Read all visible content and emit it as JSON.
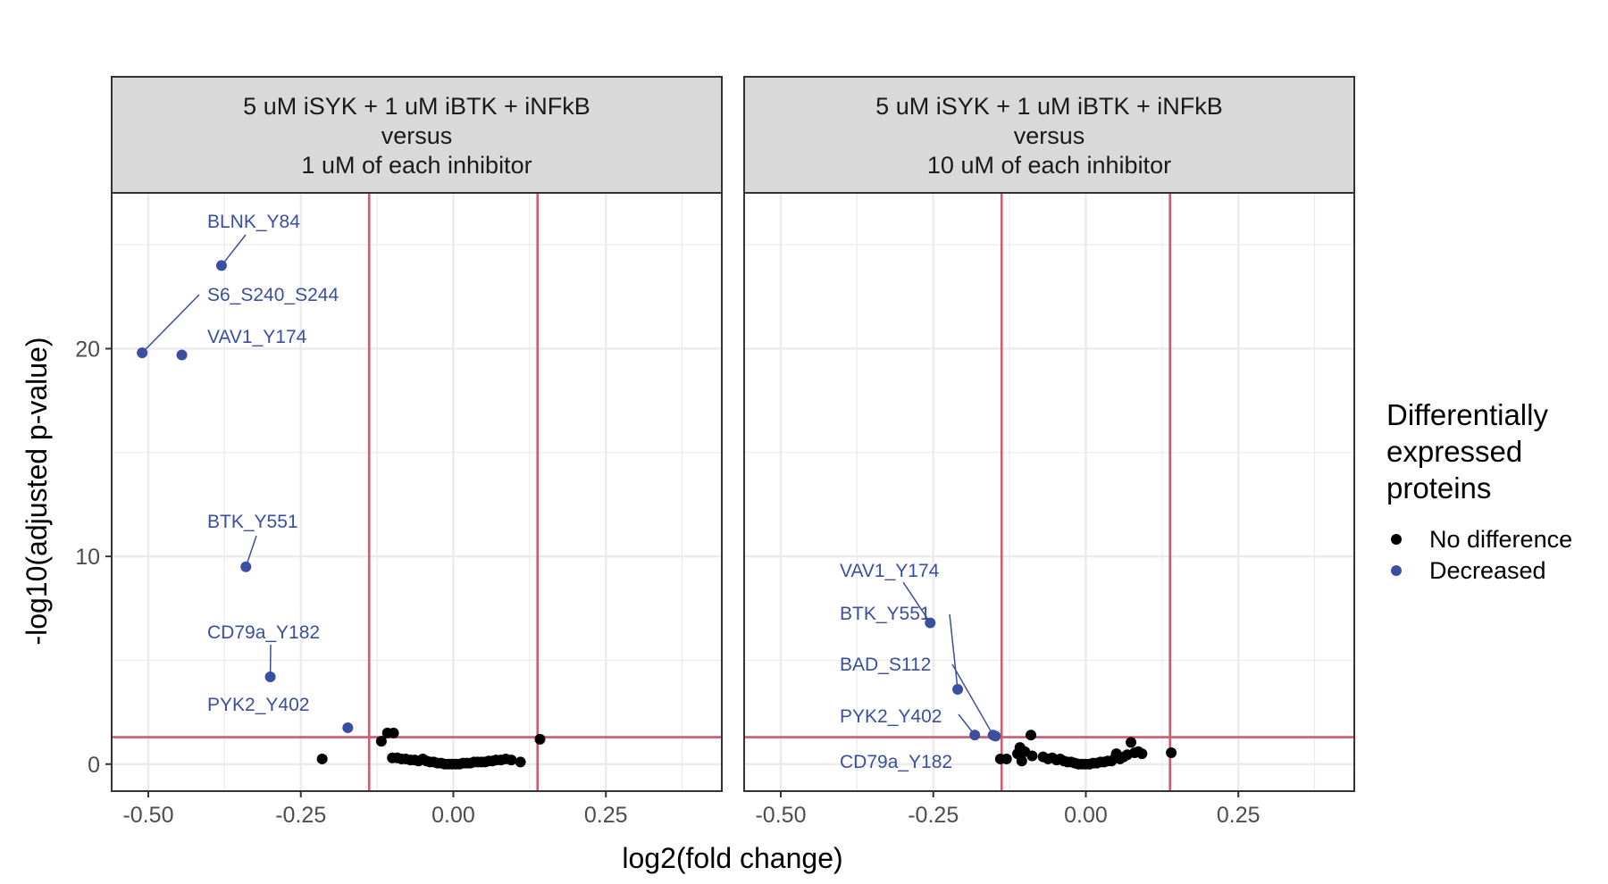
{
  "chart_data": {
    "type": "scatter",
    "xlabel": "log2(fold change)",
    "ylabel": "-log10(adjusted p-value)",
    "xlim": [
      -0.56,
      0.44
    ],
    "ylim": [
      -1.3,
      27.5
    ],
    "x_ticks": [
      -0.5,
      -0.25,
      0.0,
      0.25
    ],
    "x_tick_labels": [
      "-0.50",
      "-0.25",
      "0.00",
      "0.25"
    ],
    "y_ticks": [
      0,
      10,
      20
    ],
    "y_tick_labels": [
      "0",
      "10",
      "20"
    ],
    "thresholds": {
      "x": [
        -0.138,
        0.138
      ],
      "y": 1.3,
      "color": "#cd5c6f"
    },
    "grid": true,
    "legend": {
      "title_lines": [
        "Differentially",
        "expressed",
        "proteins"
      ],
      "placement": "right",
      "entries": [
        {
          "label": "No difference",
          "color": "#000000"
        },
        {
          "label": "Decreased",
          "color": "#3b4fa0"
        }
      ]
    },
    "colors": {
      "nodiff": "#000000",
      "decreased": "#3b4fa0",
      "strip_bg": "#d9d9d9",
      "grid": "#ebebeb"
    },
    "panels": [
      {
        "strip_lines": [
          "5 uM iSYK + 1 uM iBTK + iNFkB",
          "versus",
          "1 uM of each inhibitor"
        ],
        "decreased_points": [
          {
            "label": "BLNK_Y84",
            "x": -0.38,
            "y": 24.0
          },
          {
            "label": "S6_S240_S244",
            "x": -0.51,
            "y": 19.8
          },
          {
            "label": "VAV1_Y174",
            "x": -0.445,
            "y": 19.7
          },
          {
            "label": "BTK_Y551",
            "x": -0.34,
            "y": 9.5
          },
          {
            "label": "CD79a_Y182",
            "x": -0.3,
            "y": 4.2
          },
          {
            "label": "PYK2_Y402",
            "x": -0.173,
            "y": 1.75
          }
        ],
        "nodiff_points": [
          {
            "x": -0.215,
            "y": 0.25
          },
          {
            "x": -0.118,
            "y": 1.1
          },
          {
            "x": -0.108,
            "y": 1.5
          },
          {
            "x": -0.098,
            "y": 1.5
          },
          {
            "x": -0.1,
            "y": 0.3
          },
          {
            "x": -0.092,
            "y": 0.3
          },
          {
            "x": -0.085,
            "y": 0.25
          },
          {
            "x": -0.078,
            "y": 0.25
          },
          {
            "x": -0.07,
            "y": 0.2
          },
          {
            "x": -0.063,
            "y": 0.2
          },
          {
            "x": -0.057,
            "y": 0.15
          },
          {
            "x": -0.05,
            "y": 0.25
          },
          {
            "x": -0.044,
            "y": 0.15
          },
          {
            "x": -0.038,
            "y": 0.1
          },
          {
            "x": -0.032,
            "y": 0.1
          },
          {
            "x": -0.026,
            "y": 0.05
          },
          {
            "x": -0.02,
            "y": 0.05
          },
          {
            "x": -0.014,
            "y": 0.0
          },
          {
            "x": -0.008,
            "y": 0.0
          },
          {
            "x": -0.002,
            "y": 0.0
          },
          {
            "x": 0.004,
            "y": 0.0
          },
          {
            "x": 0.01,
            "y": 0.0
          },
          {
            "x": 0.016,
            "y": 0.05
          },
          {
            "x": 0.022,
            "y": 0.05
          },
          {
            "x": 0.028,
            "y": 0.05
          },
          {
            "x": 0.034,
            "y": 0.1
          },
          {
            "x": 0.04,
            "y": 0.1
          },
          {
            "x": 0.046,
            "y": 0.1
          },
          {
            "x": 0.052,
            "y": 0.1
          },
          {
            "x": 0.058,
            "y": 0.15
          },
          {
            "x": 0.064,
            "y": 0.15
          },
          {
            "x": 0.07,
            "y": 0.2
          },
          {
            "x": 0.078,
            "y": 0.2
          },
          {
            "x": 0.086,
            "y": 0.25
          },
          {
            "x": 0.095,
            "y": 0.2
          },
          {
            "x": 0.11,
            "y": 0.1
          },
          {
            "x": 0.142,
            "y": 1.2
          }
        ]
      },
      {
        "strip_lines": [
          "5 uM iSYK + 1 uM iBTK + iNFkB",
          "versus",
          "10 uM of each inhibitor"
        ],
        "decreased_points": [
          {
            "label": "VAV1_Y174",
            "x": -0.255,
            "y": 6.8
          },
          {
            "label": "BTK_Y551",
            "x": -0.21,
            "y": 3.6
          },
          {
            "label": "BAD_S112",
            "x": -0.152,
            "y": 1.4
          },
          {
            "label": "PYK2_Y402",
            "x": -0.182,
            "y": 1.4
          },
          {
            "label": "CD79a_Y182",
            "x": -0.148,
            "y": 1.35
          }
        ],
        "nodiff_points": [
          {
            "x": -0.14,
            "y": 0.25
          },
          {
            "x": -0.13,
            "y": 0.25
          },
          {
            "x": -0.112,
            "y": 0.5
          },
          {
            "x": -0.108,
            "y": 0.8
          },
          {
            "x": -0.105,
            "y": 0.15
          },
          {
            "x": -0.1,
            "y": 0.6
          },
          {
            "x": -0.09,
            "y": 1.4
          },
          {
            "x": -0.088,
            "y": 0.4
          },
          {
            "x": -0.07,
            "y": 0.35
          },
          {
            "x": -0.062,
            "y": 0.25
          },
          {
            "x": -0.055,
            "y": 0.3
          },
          {
            "x": -0.048,
            "y": 0.2
          },
          {
            "x": -0.042,
            "y": 0.25
          },
          {
            "x": -0.036,
            "y": 0.15
          },
          {
            "x": -0.03,
            "y": 0.1
          },
          {
            "x": -0.024,
            "y": 0.1
          },
          {
            "x": -0.018,
            "y": 0.05
          },
          {
            "x": -0.012,
            "y": 0.0
          },
          {
            "x": -0.006,
            "y": 0.0
          },
          {
            "x": 0.0,
            "y": 0.0
          },
          {
            "x": 0.006,
            "y": 0.0
          },
          {
            "x": 0.012,
            "y": 0.05
          },
          {
            "x": 0.018,
            "y": 0.05
          },
          {
            "x": 0.024,
            "y": 0.1
          },
          {
            "x": 0.03,
            "y": 0.1
          },
          {
            "x": 0.036,
            "y": 0.15
          },
          {
            "x": 0.042,
            "y": 0.15
          },
          {
            "x": 0.048,
            "y": 0.3
          },
          {
            "x": 0.05,
            "y": 0.5
          },
          {
            "x": 0.056,
            "y": 0.25
          },
          {
            "x": 0.062,
            "y": 0.35
          },
          {
            "x": 0.068,
            "y": 0.45
          },
          {
            "x": 0.074,
            "y": 1.05
          },
          {
            "x": 0.08,
            "y": 0.55
          },
          {
            "x": 0.086,
            "y": 0.6
          },
          {
            "x": 0.092,
            "y": 0.5
          },
          {
            "x": 0.14,
            "y": 0.55
          }
        ]
      }
    ]
  }
}
